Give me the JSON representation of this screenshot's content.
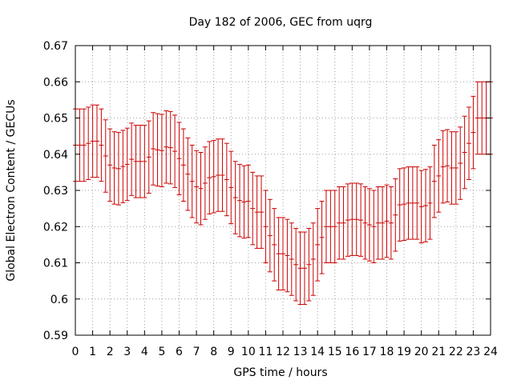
{
  "chart_data": {
    "type": "scatter",
    "title": "Day 182 of 2006, GEC from uqrg",
    "xlabel": "GPS time / hours",
    "ylabel": "Global Electron Content / GECUs",
    "xlim": [
      0,
      24
    ],
    "ylim": [
      0.59,
      0.67
    ],
    "xticks": [
      "0",
      "1",
      "2",
      "3",
      "4",
      "5",
      "6",
      "7",
      "8",
      "9",
      "10",
      "11",
      "12",
      "13",
      "14",
      "15",
      "16",
      "17",
      "18",
      "19",
      "20",
      "21",
      "22",
      "23",
      "24"
    ],
    "yticks": [
      "0.59",
      "0.6",
      "0.61",
      "0.62",
      "0.63",
      "0.64",
      "0.65",
      "0.66",
      "0.67"
    ],
    "grid": true,
    "series_color": "#cc0000",
    "series": [
      {
        "x": [
          0,
          0.25,
          0.5,
          0.75,
          1,
          1.25,
          1.5,
          1.75,
          2,
          2.25,
          2.5,
          2.75,
          3,
          3.25,
          3.5,
          3.75,
          4,
          4.25,
          4.5,
          4.75,
          5,
          5.25,
          5.5,
          5.75,
          6,
          6.25,
          6.5,
          6.75,
          7,
          7.25,
          7.5,
          7.75,
          8,
          8.25,
          8.5,
          8.75,
          9,
          9.25,
          9.5,
          9.75,
          10,
          10.25,
          10.5,
          10.75,
          11,
          11.25,
          11.5,
          11.75,
          12,
          12.25,
          12.5,
          12.75,
          13,
          13.25,
          13.5,
          13.75,
          14,
          14.25,
          14.5,
          14.75,
          15,
          15.25,
          15.5,
          15.75,
          16,
          16.25,
          16.5,
          16.75,
          17,
          17.25,
          17.5,
          17.75,
          18,
          18.25,
          18.5,
          18.75,
          19,
          19.25,
          19.5,
          19.75,
          20,
          20.25,
          20.5,
          20.75,
          21,
          21.25,
          21.5,
          21.75,
          22,
          22.25,
          22.5,
          22.75,
          23,
          23.25,
          23.5,
          23.75,
          24
        ],
        "y": [
          0.6425,
          0.6425,
          0.6425,
          0.643,
          0.6436,
          0.6436,
          0.6425,
          0.6395,
          0.637,
          0.6362,
          0.636,
          0.6366,
          0.6372,
          0.6386,
          0.638,
          0.638,
          0.638,
          0.6392,
          0.6415,
          0.6412,
          0.641,
          0.642,
          0.6418,
          0.6408,
          0.6388,
          0.637,
          0.6345,
          0.6325,
          0.631,
          0.6305,
          0.632,
          0.6335,
          0.6338,
          0.6342,
          0.6342,
          0.633,
          0.6308,
          0.628,
          0.6272,
          0.6268,
          0.627,
          0.625,
          0.624,
          0.624,
          0.62,
          0.6175,
          0.615,
          0.6125,
          0.6125,
          0.612,
          0.611,
          0.6095,
          0.6085,
          0.6085,
          0.6095,
          0.611,
          0.615,
          0.617,
          0.62,
          0.62,
          0.62,
          0.621,
          0.621,
          0.6218,
          0.622,
          0.622,
          0.6218,
          0.621,
          0.6205,
          0.62,
          0.621,
          0.621,
          0.6215,
          0.621,
          0.6232,
          0.626,
          0.6262,
          0.6265,
          0.6265,
          0.6265,
          0.6255,
          0.6258,
          0.6265,
          0.6325,
          0.634,
          0.6365,
          0.6368,
          0.6362,
          0.6362,
          0.6375,
          0.6405,
          0.643,
          0.646,
          0.65,
          0.65,
          0.65,
          0.65
        ],
        "err": [
          0.01,
          0.01,
          0.01,
          0.01,
          0.01,
          0.01,
          0.01,
          0.01,
          0.01,
          0.01,
          0.01,
          0.01,
          0.01,
          0.01,
          0.01,
          0.01,
          0.01,
          0.01,
          0.01,
          0.01,
          0.01,
          0.01,
          0.01,
          0.01,
          0.01,
          0.01,
          0.01,
          0.01,
          0.01,
          0.01,
          0.01,
          0.01,
          0.01,
          0.01,
          0.01,
          0.01,
          0.01,
          0.01,
          0.01,
          0.01,
          0.01,
          0.01,
          0.01,
          0.01,
          0.01,
          0.01,
          0.01,
          0.01,
          0.01,
          0.01,
          0.01,
          0.01,
          0.01,
          0.01,
          0.01,
          0.01,
          0.01,
          0.01,
          0.01,
          0.01,
          0.01,
          0.01,
          0.01,
          0.01,
          0.01,
          0.01,
          0.01,
          0.01,
          0.01,
          0.01,
          0.01,
          0.01,
          0.01,
          0.01,
          0.01,
          0.01,
          0.01,
          0.01,
          0.01,
          0.01,
          0.01,
          0.01,
          0.01,
          0.01,
          0.01,
          0.01,
          0.01,
          0.01,
          0.01,
          0.01,
          0.01,
          0.01,
          0.01,
          0.01,
          0.01,
          0.01,
          0.01
        ]
      }
    ]
  }
}
